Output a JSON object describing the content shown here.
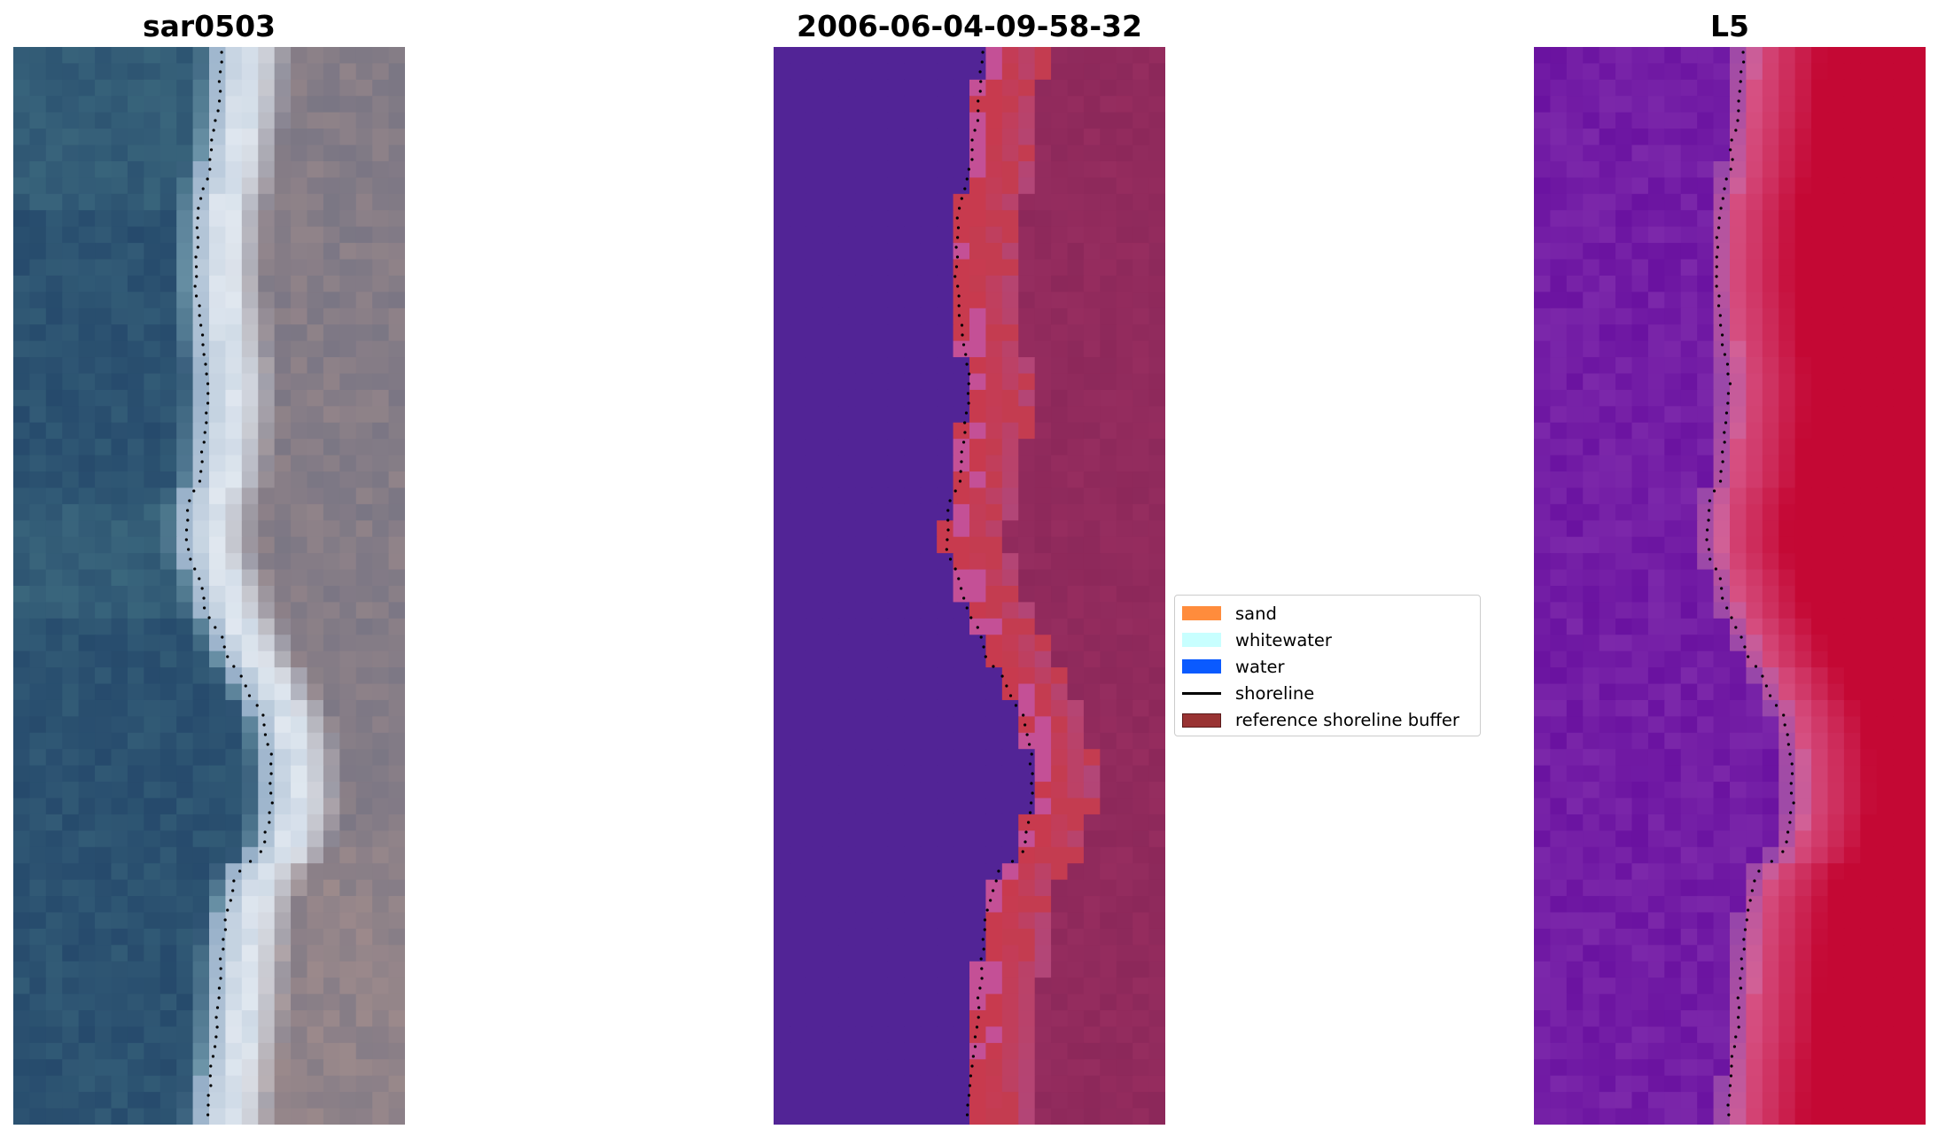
{
  "panels": [
    {
      "title": "sar0503",
      "image": "rgb-satellite-image"
    },
    {
      "title": "2006-06-04-09-58-32",
      "image": "classified-image"
    },
    {
      "title": "L5",
      "image": "index-image"
    }
  ],
  "legend": {
    "items": [
      {
        "label": "sand",
        "color": "#ff8c3c",
        "kind": "patch"
      },
      {
        "label": "whitewater",
        "color": "#c8ffff",
        "kind": "patch"
      },
      {
        "label": "water",
        "color": "#0a5aff",
        "kind": "patch"
      },
      {
        "label": "shoreline",
        "color": "#000000",
        "kind": "line"
      },
      {
        "label": "reference shoreline buffer",
        "color": "#993333",
        "kind": "patch"
      }
    ]
  }
}
